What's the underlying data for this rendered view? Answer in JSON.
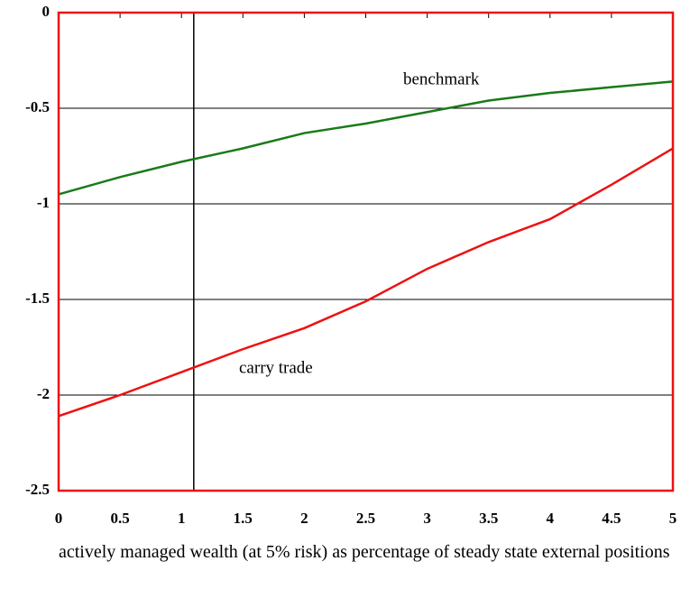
{
  "chart_data": {
    "type": "line",
    "xlabel": "actively managed wealth (at 5% risk) as percentage of steady state external positions",
    "x": [
      0,
      0.5,
      1,
      1.5,
      2,
      2.5,
      3,
      3.5,
      4,
      4.5,
      5
    ],
    "series": [
      {
        "name": "benchmark",
        "color": "#1a7a1a",
        "values": [
          -0.95,
          -0.86,
          -0.78,
          -0.71,
          -0.63,
          -0.58,
          -0.52,
          -0.46,
          -0.42,
          -0.39,
          -0.36
        ]
      },
      {
        "name": "carry trade",
        "color": "#ee1111",
        "values": [
          -2.11,
          -2.0,
          -1.88,
          -1.76,
          -1.65,
          -1.51,
          -1.34,
          -1.2,
          -1.08,
          -0.9,
          -0.71
        ]
      }
    ],
    "xlim": [
      0,
      5
    ],
    "ylim": [
      -2.5,
      0
    ],
    "xticks": [
      0,
      0.5,
      1,
      1.5,
      2,
      2.5,
      3,
      3.5,
      4,
      4.5,
      5
    ],
    "yticks": [
      0,
      -0.5,
      -1,
      -1.5,
      -2,
      -2.5
    ],
    "vline": 1.1,
    "grid": true
  }
}
